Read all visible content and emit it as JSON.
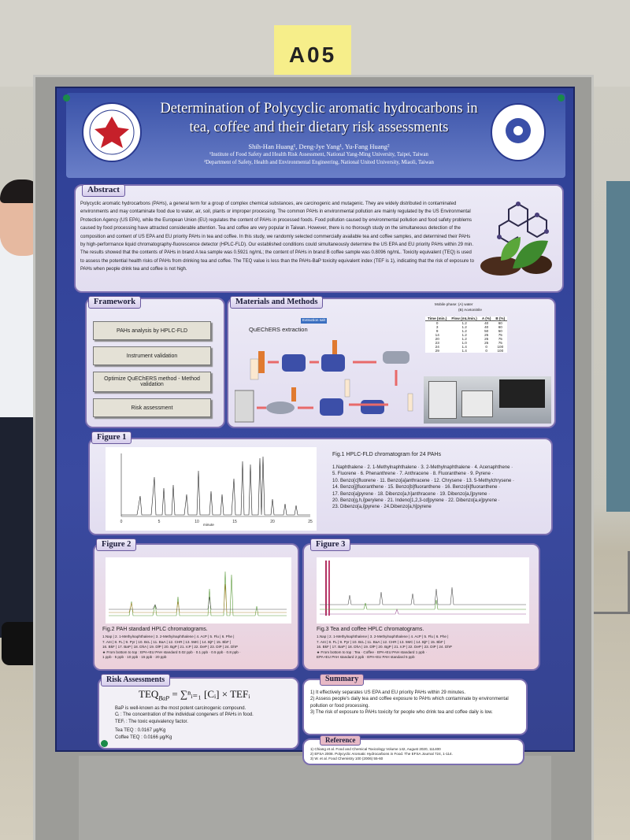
{
  "booth_label": "A05",
  "header": {
    "title_line1": "Determination of Polycyclic aromatic hydrocarbons in",
    "title_line2": "tea, coffee and their dietary risk assessments",
    "authors": "Shih-Han Huang¹, Deng-Jye Yang¹, Yu-Fang Huang²",
    "affiliation_1": "¹Institute of Food Safety and Health Risk Assessment, National Yang-Ming University, Taipei, Taiwan",
    "affiliation_2": "²Department of Safety, Health and Environmental Engineering, National United University, Miaoli, Taiwan"
  },
  "abstract": {
    "heading": "Abstract",
    "text": "Polycyclic aromatic hydrocarbons (PAHs), a general term for a group of complex chemical substances, are carcinogenic and mutagenic. They are widely distributed in contaminated environments and may contaminate food due to water, air, soil, plants or improper processing. The common PAHs in environmental pollution are mainly regulated by the US Environmental Protection Agency (US EPA), while the European Union (EU) regulates the content of PAHs in processed foods. Food pollution caused by environmental pollution and food safety problems caused by food processing have attracted considerable attention. Tea and coffee are very popular in Taiwan. However, there is no thorough study on the simultaneous detection of the composition and content of US EPA and EU priority PAHs in tea and coffee. In this study, we randomly selected commercially available tea and coffee samples, and determined their PAHs by high-performance liquid chromatography-fluorescence detector (HPLC-FLD). Our established conditions could simultaneously determine the US EPA and EU priority PAHs within 29 min. The results showed that the contents of PAHs in brand A tea sample was 0.5921 ng/mL; the content of PAHs in brand B coffee sample was 0.8096 ng/mL. Toxicity equivalent (TEQ) is used to assess the potential health risks of PAHs from drinking tea and coffee. The TEQ value is less than the PAHs-BaP toxicity equivalent index (TEF is 1), indicating that the risk of exposure to PAHs when people drink tea and coffee is not high."
  },
  "framework": {
    "heading": "Framework",
    "steps": [
      "PAHs analysis by HPLC-FLD",
      "Instrument validation",
      "Optimize QuEChERS method - Method validation",
      "Risk assessment"
    ]
  },
  "materials": {
    "heading": "Materials and Methods",
    "extraction_label": "QuEChERS extraction",
    "salt_label": "Extraction salt",
    "mobile_phase_a": "Mobile phase: (A) water",
    "mobile_phase_b": "(B) Acetonitrile",
    "table": {
      "columns": [
        "Time (min.)",
        "Flow (mL/min.)",
        "A (%)",
        "B (%)"
      ],
      "rows": [
        [
          "0",
          "1.2",
          "40",
          "60"
        ],
        [
          "3",
          "1.2",
          "40",
          "60"
        ],
        [
          "9",
          "1.2",
          "50",
          "50"
        ],
        [
          "14",
          "1.2",
          "25",
          "75"
        ],
        [
          "20",
          "1.2",
          "25",
          "75"
        ],
        [
          "23",
          "1.0",
          "25",
          "75"
        ],
        [
          "24",
          "1.4",
          "0",
          "100"
        ],
        [
          "29",
          "1.4",
          "0",
          "100"
        ]
      ]
    }
  },
  "figure1": {
    "heading": "Figure 1",
    "xtick_labels": [
      "0",
      "5",
      "10",
      "15",
      "20",
      "25"
    ],
    "axis_label": "minute",
    "caption": "Fig.1 HPLC-FLD chromatogram for 24 PAHs",
    "legend": [
      "1.Naphthalene · 2. 1-Methylnaphthalene · 3. 2-Methylnaphthalene · 4. Acenaphthene ·",
      "5. Fluorene · 6. Phenanthrene · 7. Anthracene · 8. Fluoranthene · 9. Pyrene ·",
      "10. Benzo[c]fluorene · 11. Benzo[a]anthracene · 12. Chrysene · 13. 5-Methylchrysene ·",
      "14. Benzo[j]fluoranthene · 15. Benzo[b]fluoranthene · 16. Benzo[k]fluoranthene ·",
      "17. Benzo[a]pyrene · 18. Dibenzo[a,h]anthracene · 19. Dibenzo[a,l]pyrene ·",
      "20. Benzo[g,h,i]perylene · 21. Indeno[1,2,3-cd]pyrene · 22. Dibenzo[a,e]pyrene ·",
      "23. Dibenzo[a,i]pyrene · 24.Dibenzo[a,h]pyrene"
    ]
  },
  "figure2": {
    "heading": "Figure 2",
    "caption": "Fig.2 PAH standard HPLC chromatograms.",
    "notes": [
      "1.Nap | 2. 1-Methylnaphthalene | 3. 2-Methylnaphthalene | 4. AcP | 5. Flu | 6. Phe |",
      "7. Ant | 8. FL | 9. Pyr | 10. BcL | 11. BaA | 12. CHR | 13. 5MC | 14. BjF | 15. BbF |",
      "16. BkF | 17. BaP | 18. DhA | 19. DlP | 20. BgP | 21. IcP | 22. DeP | 23. DiP | 24. DhP",
      "★ From bottom to top : EPA+EU PAH standard 0.02 ppb · 0.1 ppb · 0.5 ppb · 0.8 ppb ·",
      "1 ppb · 5 ppb · 10 ppb · 15 ppb · 20 ppb"
    ]
  },
  "figure3": {
    "heading": "Figure 3",
    "caption": "Fig.3 Tea and coffee HPLC chromatograms.",
    "notes": [
      "1.Nap | 2. 1-Methylnaphthalene | 3. 2-Methylnaphthalene | 4. AcP | 5. Flu | 6. Phe |",
      "7. Ant | 8. FL | 9. Pyr | 10. BcL | 11. BaA | 12. CHR | 13. 5MC | 14. BjF | 15. BbF |",
      "16. BkF | 17. BaP | 18. DhA | 19. DlP | 20. BgP | 21. IcP | 22. DeP | 23. DiP | 24. DhP",
      "★ From bottom to top : Tea · Coffee · EPA+EU PAH standard 1 ppb ·",
      "EPA+EU PAH standard 2 ppb · EPA+EU PAH standard 5 ppb"
    ]
  },
  "risk": {
    "heading": "Risk Assessments",
    "formula_lhs": "TEQ",
    "formula_sub": "BaP",
    "formula_rhs": "= ∑ⁿᵢ₌₁ [Cᵢ] × TEFᵢ",
    "notes": [
      "BaP is well-known as the most potent carcinogenic compound.",
      "Cᵢ : The concentration of the individual congeners of PAHs in food.",
      "TEFᵢ : The toxic equivalency factor."
    ],
    "tea_teq": "Tea TEQ : 0.0167 μg/Kg",
    "coffee_teq": "Coffee TEQ : 0.0166 μg/Kg"
  },
  "summary": {
    "heading": "Summary",
    "items": [
      "1) It effectively separates US EPA and EU priority PAHs within 29 minutes.",
      "2) Assess people's daily tea and coffee exposure to PAHs which contaminate by environmental pollution or food processing.",
      "3) The risk of exposure to PAHs toxicity for people who drink tea and coffee daily is low."
    ]
  },
  "reference": {
    "heading": "Reference",
    "items": [
      "1) Chiang et al. Food and Chemical Toxicology Volume 142, August 2020, 111400",
      "2) EFSA 2008. Polycyclic Aromatic Hydrocarbons in Food. The EFSA Journal 724, 1-114.",
      "3) W. et al. Food Chemistry 100 (2006) 55-60"
    ]
  }
}
